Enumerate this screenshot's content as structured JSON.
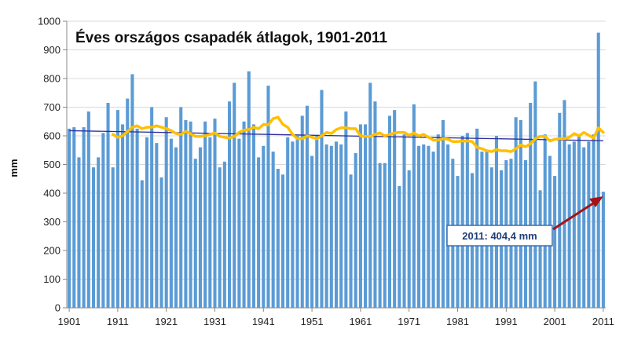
{
  "chart_data": {
    "type": "bar",
    "title": "Éves országos csapadék átlagok, 1901-2011",
    "xlabel": "",
    "ylabel": "mm",
    "ylim": [
      0,
      1000
    ],
    "yticks": [
      0,
      100,
      200,
      300,
      400,
      500,
      600,
      700,
      800,
      900,
      1000
    ],
    "xticks": [
      1901,
      1911,
      1921,
      1931,
      1941,
      1951,
      1961,
      1971,
      1981,
      1991,
      2001,
      2011
    ],
    "grid": true,
    "colors": {
      "bars": "#5b9bd5",
      "moving_average": "#ffc000",
      "trend": "#2e2e9c",
      "arrow": "#a31515",
      "callout_border": "#3a6fb0"
    },
    "annotation": "2011: 404,4 mm",
    "x": [
      1901,
      1902,
      1903,
      1904,
      1905,
      1906,
      1907,
      1908,
      1909,
      1910,
      1911,
      1912,
      1913,
      1914,
      1915,
      1916,
      1917,
      1918,
      1919,
      1920,
      1921,
      1922,
      1923,
      1924,
      1925,
      1926,
      1927,
      1928,
      1929,
      1930,
      1931,
      1932,
      1933,
      1934,
      1935,
      1936,
      1937,
      1938,
      1939,
      1940,
      1941,
      1942,
      1943,
      1944,
      1945,
      1946,
      1947,
      1948,
      1949,
      1950,
      1951,
      1952,
      1953,
      1954,
      1955,
      1956,
      1957,
      1958,
      1959,
      1960,
      1961,
      1962,
      1963,
      1964,
      1965,
      1966,
      1967,
      1968,
      1969,
      1970,
      1971,
      1972,
      1973,
      1974,
      1975,
      1976,
      1977,
      1978,
      1979,
      1980,
      1981,
      1982,
      1983,
      1984,
      1985,
      1986,
      1987,
      1988,
      1989,
      1990,
      1991,
      1992,
      1993,
      1994,
      1995,
      1996,
      1997,
      1998,
      1999,
      2000,
      2001,
      2002,
      2003,
      2004,
      2005,
      2006,
      2007,
      2008,
      2009,
      2010,
      2011
    ],
    "series": [
      {
        "type": "bar",
        "values": [
          625,
          630,
          525,
          630,
          685,
          490,
          525,
          610,
          715,
          490,
          690,
          640,
          730,
          815,
          625,
          445,
          595,
          700,
          575,
          455,
          665,
          590,
          560,
          700,
          655,
          650,
          520,
          560,
          650,
          595,
          660,
          490,
          510,
          720,
          785,
          590,
          650,
          825,
          640,
          525,
          565,
          775,
          545,
          485,
          465,
          595,
          580,
          600,
          670,
          705,
          530,
          600,
          760,
          570,
          565,
          580,
          570,
          685,
          465,
          540,
          640,
          640,
          785,
          720,
          505,
          505,
          670,
          690,
          425,
          605,
          480,
          710,
          565,
          570,
          565,
          545,
          605,
          655,
          570,
          520,
          460,
          600,
          610,
          470,
          625,
          545,
          550,
          490,
          600,
          480,
          515,
          520,
          665,
          655,
          515,
          715,
          790,
          410,
          605,
          530,
          460,
          680,
          725,
          570,
          580,
          600,
          560,
          580,
          605,
          960,
          405
        ]
      },
      {
        "type": "line",
        "values": [
          null,
          null,
          null,
          null,
          null,
          null,
          null,
          null,
          null,
          605,
          595,
          600,
          615,
          630,
          635,
          625,
          630,
          630,
          635,
          630,
          625,
          618,
          608,
          605,
          615,
          608,
          598,
          598,
          600,
          605,
          610,
          598,
          595,
          592,
          598,
          612,
          620,
          622,
          630,
          625,
          640,
          638,
          660,
          665,
          640,
          630,
          605,
          590,
          590,
          600,
          595,
          590,
          600,
          612,
          608,
          622,
          628,
          628,
          625,
          625,
          600,
          598,
          598,
          605,
          610,
          600,
          605,
          610,
          612,
          612,
          602,
          610,
          600,
          605,
          595,
          585,
          585,
          590,
          588,
          580,
          580,
          582,
          582,
          580,
          560,
          555,
          548,
          545,
          552,
          548,
          548,
          545,
          555,
          568,
          562,
          572,
          590,
          598,
          598,
          582,
          588,
          590,
          590,
          595,
          608,
          600,
          612,
          602,
          592,
          628,
          612
        ]
      },
      {
        "type": "line",
        "start": 618,
        "end": 583
      }
    ]
  }
}
